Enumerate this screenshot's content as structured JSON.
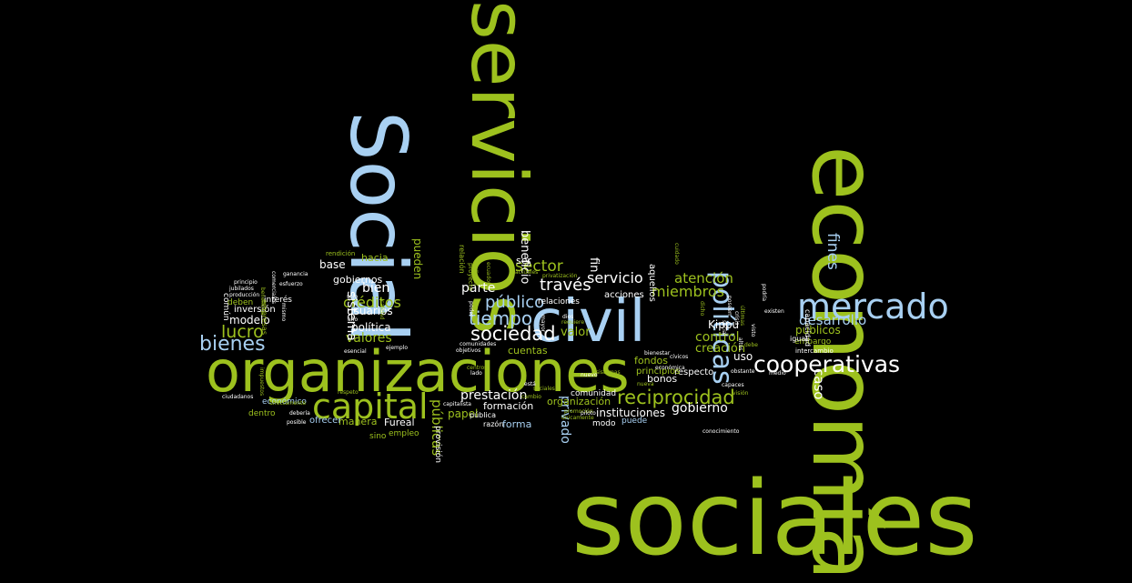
{
  "colors": {
    "background": "#000000",
    "green": "#9DC11E",
    "blue": "#A8D0F2",
    "white": "#FFFFFF",
    "olive": "#7E9D19"
  },
  "words": [
    {
      "text": "sociales",
      "color": "green"
    },
    {
      "text": "economía",
      "color": "green"
    },
    {
      "text": "servicios",
      "color": "green"
    },
    {
      "text": "Social",
      "color": "blue"
    },
    {
      "text": "organizaciones",
      "color": "green"
    },
    {
      "text": "civil",
      "color": "blue"
    },
    {
      "text": "mercado",
      "color": "blue"
    },
    {
      "text": "capital",
      "color": "green"
    },
    {
      "text": "cooperativas",
      "color": "white"
    },
    {
      "text": "políticas",
      "color": "blue"
    },
    {
      "text": "bienes",
      "color": "blue"
    },
    {
      "text": "reciprocidad",
      "color": "green"
    },
    {
      "text": "sociedad",
      "color": "white"
    },
    {
      "text": "tiempo",
      "color": "blue"
    },
    {
      "text": "público",
      "color": "blue"
    },
    {
      "text": "servicio",
      "color": "white"
    },
    {
      "text": "desarrollo",
      "color": "blue"
    },
    {
      "text": "miembros",
      "color": "green"
    },
    {
      "text": "atención",
      "color": "green"
    },
    {
      "text": "través",
      "color": "white"
    },
    {
      "text": "sector",
      "color": "green"
    },
    {
      "text": "prestación",
      "color": "white"
    },
    {
      "text": "créditos",
      "color": "green"
    },
    {
      "text": "lucro",
      "color": "green"
    },
    {
      "text": "fines",
      "color": "blue"
    },
    {
      "text": "caso",
      "color": "white"
    },
    {
      "text": "gobierno",
      "color": "white"
    },
    {
      "text": "control",
      "color": "green"
    },
    {
      "text": "creación",
      "color": "green"
    },
    {
      "text": "valores",
      "color": "green"
    },
    {
      "text": "sistema",
      "color": "white"
    },
    {
      "text": "privado",
      "color": "blue"
    },
    {
      "text": "públicas",
      "color": "green"
    },
    {
      "text": "fin",
      "color": "white"
    },
    {
      "text": "beneficio",
      "color": "white"
    },
    {
      "text": "pueden",
      "color": "green"
    },
    {
      "text": "base",
      "color": "white"
    },
    {
      "text": "hacia",
      "color": "green"
    },
    {
      "text": "gobiernos",
      "color": "white"
    },
    {
      "text": "bien",
      "color": "white"
    },
    {
      "text": "parte",
      "color": "white"
    },
    {
      "text": "modelo",
      "color": "white"
    },
    {
      "text": "usuarios",
      "color": "white"
    },
    {
      "text": "política",
      "color": "white"
    },
    {
      "text": "papel",
      "color": "green"
    },
    {
      "text": "instituciones",
      "color": "white"
    },
    {
      "text": "manera",
      "color": "green"
    },
    {
      "text": "Fureal",
      "color": "white"
    },
    {
      "text": "valor",
      "color": "green"
    },
    {
      "text": "uso",
      "color": "white"
    },
    {
      "text": "Kippu",
      "color": "white"
    },
    {
      "text": "públicos",
      "color": "green"
    },
    {
      "text": "bonos",
      "color": "white"
    },
    {
      "text": "respecto",
      "color": "white"
    },
    {
      "text": "fondos",
      "color": "green"
    },
    {
      "text": "cuentas",
      "color": "green"
    },
    {
      "text": "formación",
      "color": "white"
    },
    {
      "text": "organización",
      "color": "green"
    },
    {
      "text": "ser",
      "color": "white"
    },
    {
      "text": "forma",
      "color": "blue"
    },
    {
      "text": "ofrecer",
      "color": "blue"
    },
    {
      "text": "inversión",
      "color": "white"
    },
    {
      "text": "principios",
      "color": "green"
    },
    {
      "text": "aquellos",
      "color": "white"
    },
    {
      "text": "acciones",
      "color": "white"
    },
    {
      "text": "relaciones",
      "color": "white"
    },
    {
      "text": "comunidad",
      "color": "white"
    },
    {
      "text": "modo",
      "color": "white"
    },
    {
      "text": "puede",
      "color": "blue"
    },
    {
      "text": "embargo",
      "color": "green"
    },
    {
      "text": "empleo",
      "color": "green"
    },
    {
      "text": "sino",
      "color": "green"
    },
    {
      "text": "razón",
      "color": "white"
    },
    {
      "text": "pública",
      "color": "white"
    },
    {
      "text": "provisión",
      "color": "white"
    },
    {
      "text": "económico",
      "color": "blue"
    },
    {
      "text": "dentro",
      "color": "green"
    },
    {
      "text": "interés",
      "color": "white"
    },
    {
      "text": "deben",
      "color": "green"
    },
    {
      "text": "común",
      "color": "white"
    },
    {
      "text": "empresas",
      "color": "green"
    },
    {
      "text": "capacidad",
      "color": "white"
    },
    {
      "text": "intercambio",
      "color": "white"
    },
    {
      "text": "igual",
      "color": "white"
    },
    {
      "text": "producción",
      "color": "white"
    },
    {
      "text": "jubilados",
      "color": "white"
    },
    {
      "text": "principio",
      "color": "white"
    },
    {
      "text": "ganancia",
      "color": "white"
    },
    {
      "text": "rendición",
      "color": "green"
    },
    {
      "text": "comerciales",
      "color": "white"
    },
    {
      "text": "esfuerzo",
      "color": "white"
    },
    {
      "text": "ciudadanos",
      "color": "white"
    },
    {
      "text": "mismo",
      "color": "white"
    },
    {
      "text": "esencial",
      "color": "white"
    },
    {
      "text": "impuestos",
      "color": "green"
    },
    {
      "text": "privatización",
      "color": "green"
    },
    {
      "text": "proyecto",
      "color": "green"
    },
    {
      "text": "relación",
      "color": "green"
    },
    {
      "text": "objetivos",
      "color": "white"
    },
    {
      "text": "comunidades",
      "color": "white"
    },
    {
      "text": "promoción",
      "color": "green"
    },
    {
      "text": "únicamente",
      "color": "green"
    },
    {
      "text": "sistemas",
      "color": "green"
    },
    {
      "text": "cambio",
      "color": "green"
    },
    {
      "text": "solo",
      "color": "white"
    },
    {
      "text": "dios",
      "color": "white"
    },
    {
      "text": "nuevo",
      "color": "white"
    },
    {
      "text": "bienestar",
      "color": "white"
    },
    {
      "text": "cívicos",
      "color": "white"
    },
    {
      "text": "capaces",
      "color": "white"
    },
    {
      "text": "visión",
      "color": "green"
    },
    {
      "text": "conocimiento",
      "color": "white"
    },
    {
      "text": "medio",
      "color": "white"
    },
    {
      "text": "posible",
      "color": "white"
    },
    {
      "text": "debería",
      "color": "white"
    },
    {
      "text": "lado",
      "color": "white"
    },
    {
      "text": "piloto",
      "color": "white"
    },
    {
      "text": "capitalista",
      "color": "white"
    },
    {
      "text": "directamente",
      "color": "green"
    },
    {
      "text": "ejemplo",
      "color": "white"
    },
    {
      "text": "debe",
      "color": "green"
    },
    {
      "text": "poder",
      "color": "white"
    },
    {
      "text": "mayor",
      "color": "white"
    },
    {
      "text": "requiere",
      "color": "green"
    },
    {
      "text": "año",
      "color": "white"
    },
    {
      "text": "poseen",
      "color": "white"
    },
    {
      "text": "dicho",
      "color": "green"
    },
    {
      "text": "cuidado",
      "color": "green"
    },
    {
      "text": "obstante",
      "color": "white"
    },
    {
      "text": "económica",
      "color": "white"
    },
    {
      "text": "podría",
      "color": "white"
    },
    {
      "text": "calidad",
      "color": "green"
    },
    {
      "text": "ecuador",
      "color": "green"
    },
    {
      "text": "centros",
      "color": "green"
    },
    {
      "text": "respeto",
      "color": "green"
    },
    {
      "text": "nueva",
      "color": "green"
    },
    {
      "text": "dichas",
      "color": "green"
    },
    {
      "text": "beneficios",
      "color": "green"
    },
    {
      "text": "actuales",
      "color": "green"
    },
    {
      "text": "está",
      "color": "white"
    },
    {
      "text": "sociales",
      "color": "green"
    },
    {
      "text": "últimas",
      "color": "green"
    },
    {
      "text": "crisis",
      "color": "white"
    },
    {
      "text": "existen",
      "color": "white"
    },
    {
      "text": "social",
      "color": "white"
    },
    {
      "text": "altos",
      "color": "white"
    },
    {
      "text": "visto",
      "color": "white"
    },
    {
      "text": "buscar",
      "color": "white"
    }
  ]
}
